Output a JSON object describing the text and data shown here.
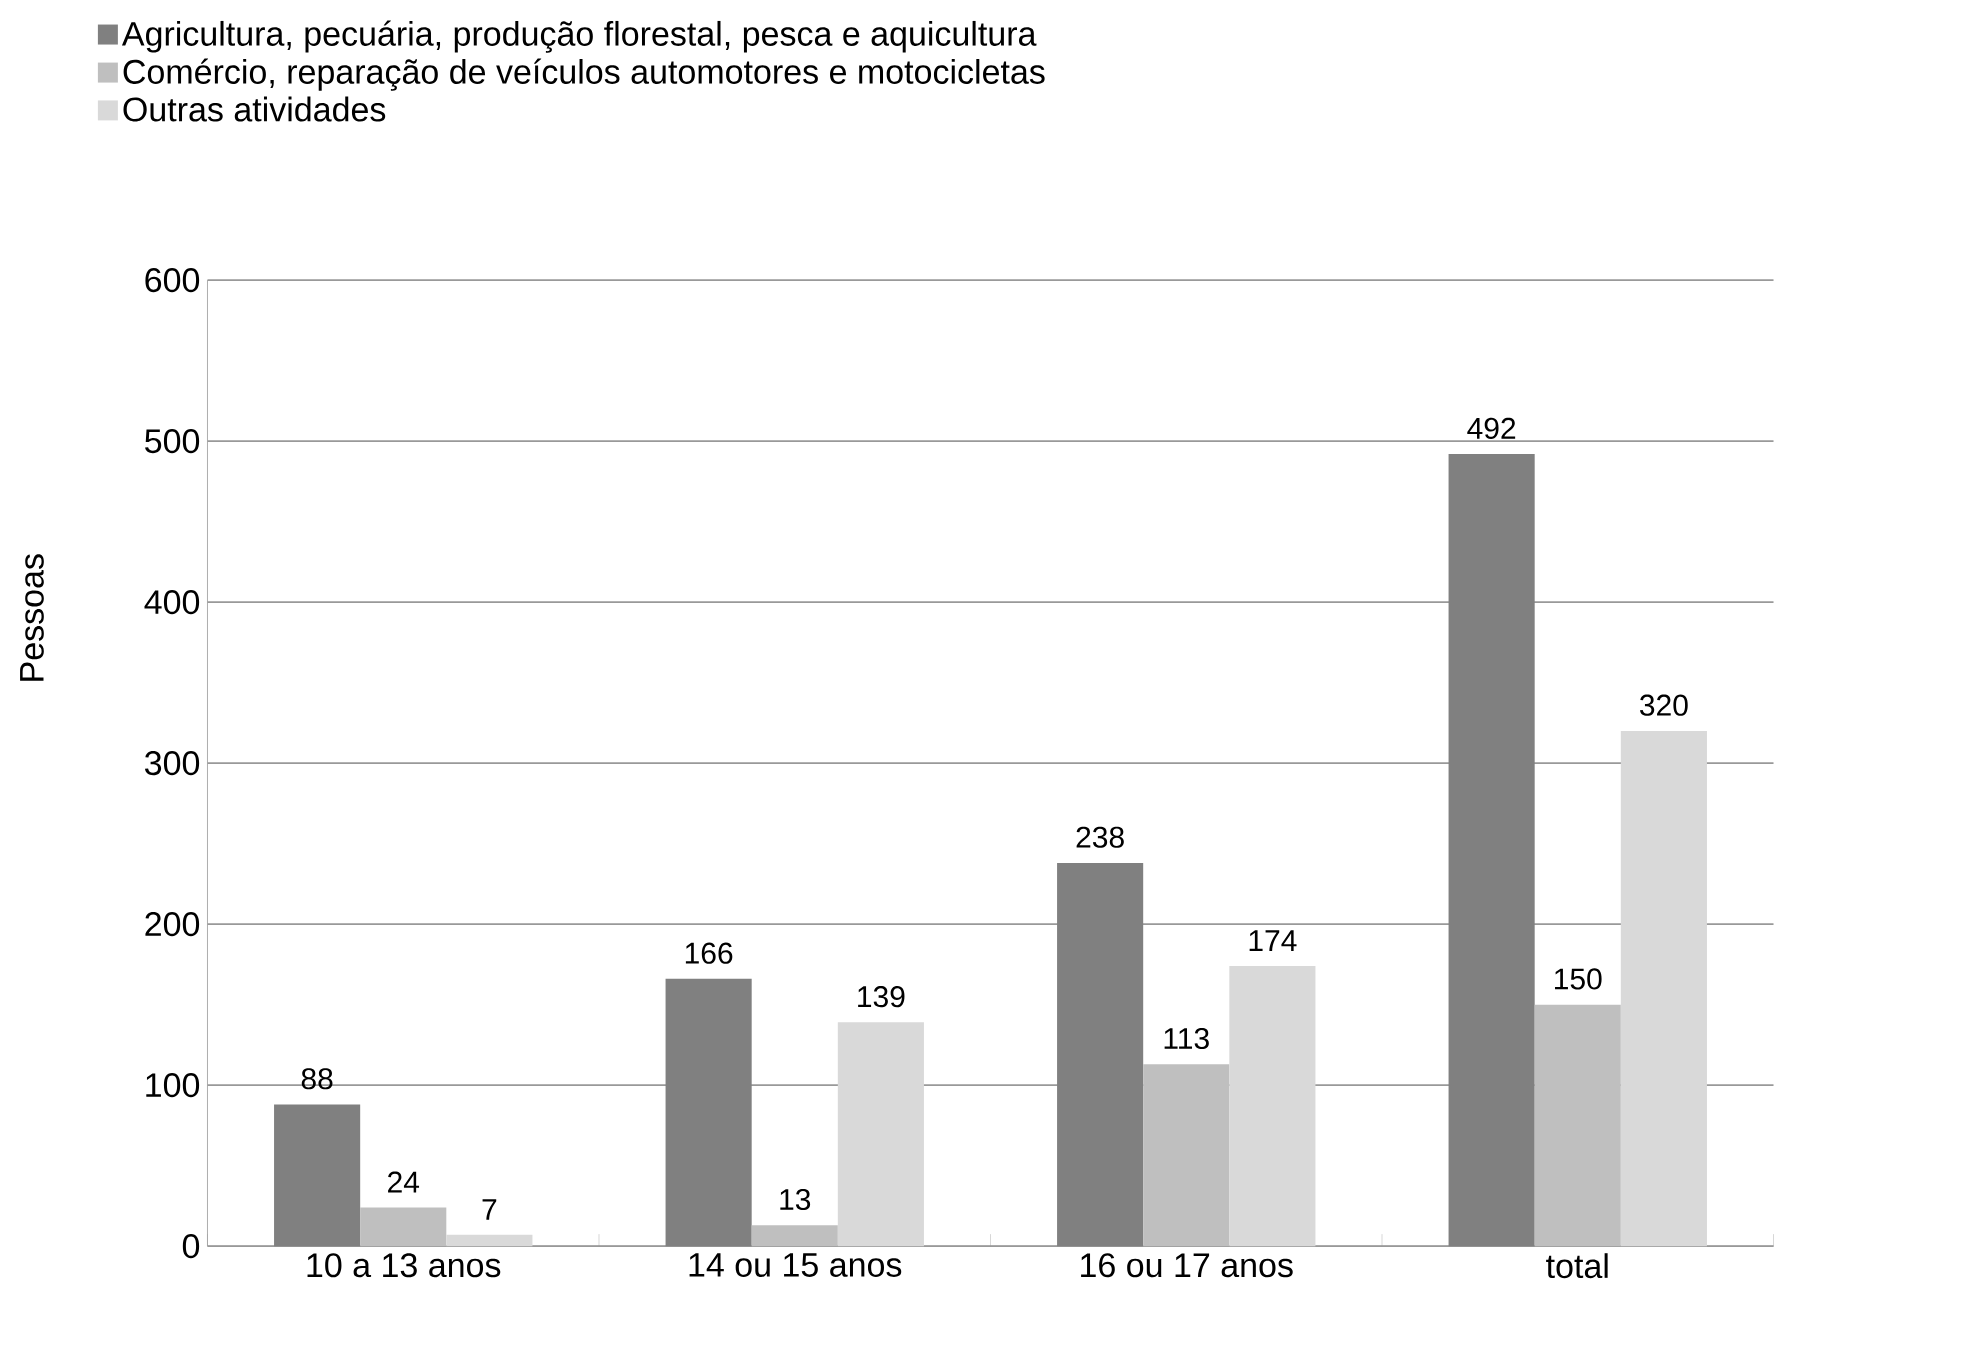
{
  "chart_data": {
    "type": "bar",
    "ylabel": "Pessoas",
    "categories": [
      "10 a 13 anos",
      "14 ou 15 anos",
      "16 ou 17 anos",
      "total"
    ],
    "series": [
      {
        "name": "Agricultura, pecuária, produção florestal, pesca e aquicultura",
        "color": "#808080",
        "values": [
          88,
          166,
          238,
          492
        ]
      },
      {
        "name": "Comércio, reparação de veículos automotores e motocicletas",
        "color": "#bfbfbf",
        "values": [
          24,
          13,
          113,
          150
        ]
      },
      {
        "name": "Outras atividades",
        "color": "#d9d9d9",
        "values": [
          7,
          139,
          174,
          320
        ]
      }
    ],
    "ylim": [
      0,
      600
    ],
    "yticks": [
      0,
      100,
      200,
      300,
      400,
      500,
      600
    ],
    "grid": "y",
    "legend": "top left",
    "data_labels": true
  }
}
